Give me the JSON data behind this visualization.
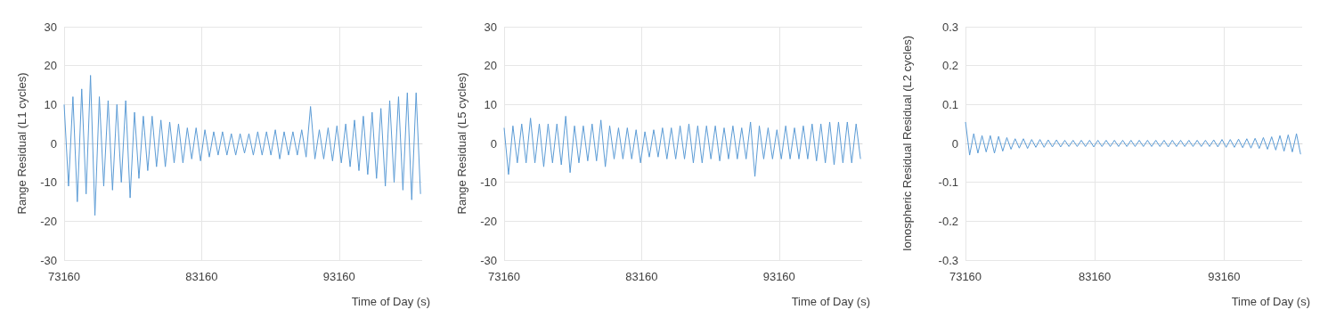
{
  "chart_data": [
    {
      "type": "line",
      "xlabel": "Time of Day (s)",
      "ylabel": "Range Residual (L1 cycles)",
      "xlim": [
        73160,
        99200
      ],
      "xticks": [
        73160,
        83160,
        93160
      ],
      "ylim": [
        -30,
        30
      ],
      "yticks": [
        -30,
        -20,
        -10,
        0,
        10,
        20,
        30
      ],
      "grid": true,
      "x": [
        73160,
        73480,
        73800,
        74120,
        74440,
        74760,
        75080,
        75400,
        75720,
        76040,
        76360,
        76680,
        77000,
        77320,
        77640,
        77960,
        78280,
        78600,
        78920,
        79240,
        79560,
        79880,
        80200,
        80520,
        80840,
        81160,
        81480,
        81800,
        82120,
        82440,
        82760,
        83080,
        83400,
        83720,
        84040,
        84360,
        84680,
        85000,
        85320,
        85640,
        85960,
        86280,
        86600,
        86920,
        87240,
        87560,
        87880,
        88200,
        88520,
        88840,
        89160,
        89480,
        89800,
        90120,
        90440,
        90760,
        91080,
        91400,
        91720,
        92040,
        92360,
        92680,
        93000,
        93320,
        93640,
        93960,
        94280,
        94600,
        94920,
        95240,
        95560,
        95880,
        96200,
        96520,
        96840,
        97160,
        97480,
        97800,
        98120,
        98440,
        98760,
        99080
      ],
      "series": [
        {
          "color": "#5b9bd5",
          "values": [
            10,
            -11,
            12,
            -15,
            14,
            -13,
            17.5,
            -18.5,
            12,
            -11,
            11,
            -12,
            10,
            -10,
            11,
            -14,
            8,
            -9,
            7,
            -7,
            7,
            -6,
            6,
            -6,
            5.5,
            -5,
            5,
            -5,
            4,
            -4,
            4,
            -4.5,
            3.5,
            -3.5,
            3,
            -3,
            3,
            -3,
            2.5,
            -3,
            2.5,
            -2.5,
            2.5,
            -3,
            3,
            -3,
            3,
            -3,
            3.5,
            -4,
            3,
            -3,
            3,
            -3,
            3.5,
            -3.5,
            9.5,
            -4,
            3.5,
            -4,
            4,
            -4.5,
            4.5,
            -5,
            5,
            -6,
            6,
            -7,
            7,
            -8,
            8,
            -9,
            9,
            -11,
            11,
            -10,
            12,
            -12,
            13,
            -14.5,
            13,
            -13
          ]
        }
      ]
    },
    {
      "type": "line",
      "xlabel": "Time of Day (s)",
      "ylabel": "Range Residual (L5 cycles)",
      "xlim": [
        73160,
        99200
      ],
      "xticks": [
        73160,
        83160,
        93160
      ],
      "ylim": [
        -30,
        30
      ],
      "yticks": [
        -30,
        -20,
        -10,
        0,
        10,
        20,
        30
      ],
      "grid": true,
      "x": [
        73160,
        73480,
        73800,
        74120,
        74440,
        74760,
        75080,
        75400,
        75720,
        76040,
        76360,
        76680,
        77000,
        77320,
        77640,
        77960,
        78280,
        78600,
        78920,
        79240,
        79560,
        79880,
        80200,
        80520,
        80840,
        81160,
        81480,
        81800,
        82120,
        82440,
        82760,
        83080,
        83400,
        83720,
        84040,
        84360,
        84680,
        85000,
        85320,
        85640,
        85960,
        86280,
        86600,
        86920,
        87240,
        87560,
        87880,
        88200,
        88520,
        88840,
        89160,
        89480,
        89800,
        90120,
        90440,
        90760,
        91080,
        91400,
        91720,
        92040,
        92360,
        92680,
        93000,
        93320,
        93640,
        93960,
        94280,
        94600,
        94920,
        95240,
        95560,
        95880,
        96200,
        96520,
        96840,
        97160,
        97480,
        97800,
        98120,
        98440,
        98760,
        99080
      ],
      "series": [
        {
          "color": "#5b9bd5",
          "values": [
            4,
            -8,
            4.5,
            -5,
            5,
            -5,
            6.5,
            -5,
            5,
            -6,
            5,
            -5,
            5,
            -5.5,
            7,
            -7.5,
            4.5,
            -5,
            4.5,
            -4.5,
            5,
            -4.5,
            6,
            -6,
            4.5,
            -4,
            4,
            -4,
            4,
            -4,
            3.5,
            -5,
            3,
            -3.5,
            3.5,
            -3.5,
            4,
            -4,
            4,
            -4,
            4.5,
            -4,
            5,
            -5,
            4.5,
            -5,
            4.5,
            -4,
            4.5,
            -4.5,
            4,
            -4,
            4.5,
            -4,
            4,
            -4,
            5.5,
            -8.5,
            4.5,
            -4,
            4,
            -4,
            3.5,
            -4,
            4.5,
            -4,
            4,
            -4,
            4.5,
            -4,
            5,
            -4.5,
            5,
            -5,
            5.5,
            -5.5,
            5.5,
            -5,
            5.5,
            -5,
            5,
            -4
          ]
        }
      ]
    },
    {
      "type": "line",
      "xlabel": "Time of Day (s)",
      "ylabel": "Ionospheric Residual Residual (L2 cycles)",
      "xlim": [
        73160,
        99200
      ],
      "xticks": [
        73160,
        83160,
        93160
      ],
      "ylim": [
        -0.3,
        0.3
      ],
      "yticks": [
        -0.3,
        -0.2,
        -0.1,
        0,
        0.1,
        0.2,
        0.3
      ],
      "grid": true,
      "x": [
        73160,
        73480,
        73800,
        74120,
        74440,
        74760,
        75080,
        75400,
        75720,
        76040,
        76360,
        76680,
        77000,
        77320,
        77640,
        77960,
        78280,
        78600,
        78920,
        79240,
        79560,
        79880,
        80200,
        80520,
        80840,
        81160,
        81480,
        81800,
        82120,
        82440,
        82760,
        83080,
        83400,
        83720,
        84040,
        84360,
        84680,
        85000,
        85320,
        85640,
        85960,
        86280,
        86600,
        86920,
        87240,
        87560,
        87880,
        88200,
        88520,
        88840,
        89160,
        89480,
        89800,
        90120,
        90440,
        90760,
        91080,
        91400,
        91720,
        92040,
        92360,
        92680,
        93000,
        93320,
        93640,
        93960,
        94280,
        94600,
        94920,
        95240,
        95560,
        95880,
        96200,
        96520,
        96840,
        97160,
        97480,
        97800,
        98120,
        98440,
        98760,
        99080
      ],
      "series": [
        {
          "color": "#5b9bd5",
          "values": [
            0.055,
            -0.03,
            0.025,
            -0.025,
            0.02,
            -0.022,
            0.02,
            -0.025,
            0.018,
            -0.02,
            0.015,
            -0.015,
            0.012,
            -0.012,
            0.012,
            -0.013,
            0.01,
            -0.01,
            0.01,
            -0.01,
            0.009,
            -0.009,
            0.009,
            -0.009,
            0.008,
            -0.008,
            0.008,
            -0.008,
            0.008,
            -0.008,
            0.008,
            -0.009,
            0.008,
            -0.008,
            0.008,
            -0.008,
            0.008,
            -0.008,
            0.008,
            -0.008,
            0.008,
            -0.008,
            0.008,
            -0.008,
            0.008,
            -0.008,
            0.008,
            -0.008,
            0.008,
            -0.009,
            0.008,
            -0.008,
            0.008,
            -0.008,
            0.008,
            -0.008,
            0.008,
            -0.008,
            0.008,
            -0.008,
            0.009,
            -0.009,
            0.01,
            -0.01,
            0.01,
            -0.01,
            0.011,
            -0.011,
            0.012,
            -0.012,
            0.013,
            -0.013,
            0.015,
            -0.015,
            0.017,
            -0.017,
            0.02,
            -0.02,
            0.022,
            -0.022,
            0.025,
            -0.028
          ]
        }
      ]
    }
  ]
}
